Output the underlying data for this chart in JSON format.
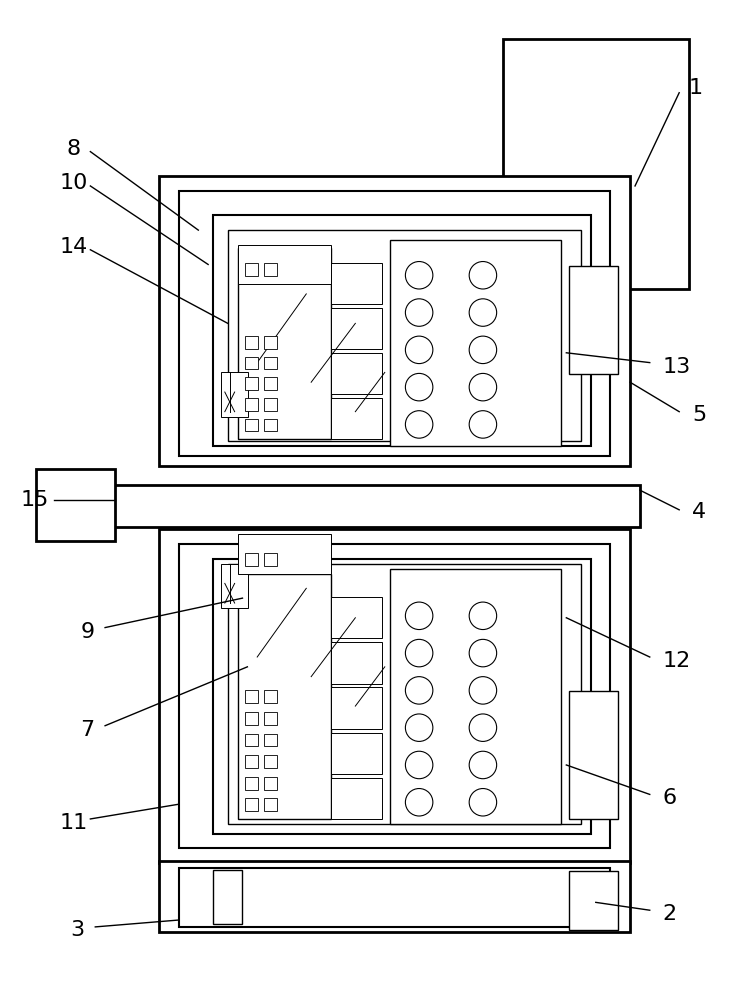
{
  "bg_color": "#ffffff",
  "fig_width": 7.46,
  "fig_height": 10.0,
  "dpi": 100,
  "lw_heavy": 2.0,
  "lw_medium": 1.5,
  "lw_light": 1.0,
  "lw_thin": 0.7,
  "label_fontsize": 16
}
